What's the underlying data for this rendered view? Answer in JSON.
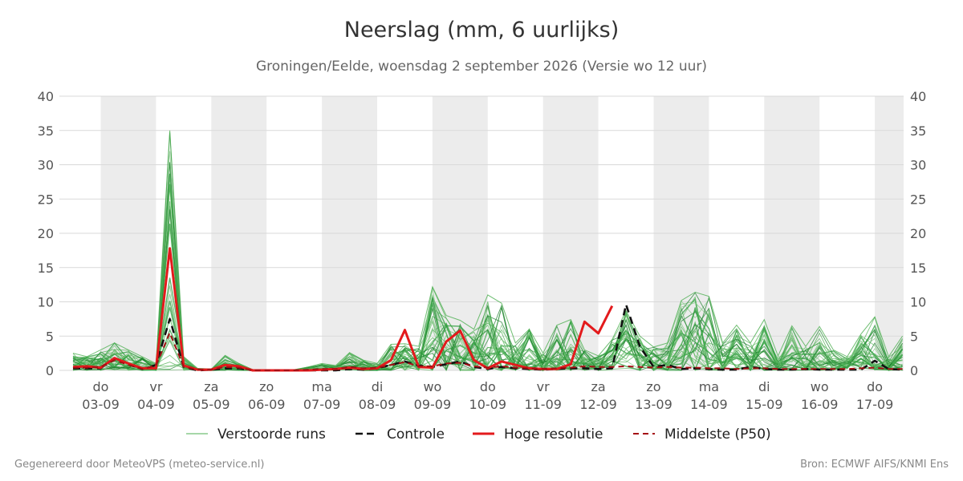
{
  "chart_data": {
    "type": "line",
    "title": "Neerslag (mm, 6 uurlijks)",
    "subtitle": "Groningen/Eelde, woensdag  2 september 2026 (Versie wo 12 uur)",
    "ylim": [
      0,
      40
    ],
    "yticks": [
      0,
      5,
      10,
      15,
      20,
      25,
      30,
      35,
      40
    ],
    "x_start_day": "02-09-2026 12:00",
    "x_step_hours": 6,
    "xtick_labels": [
      {
        "day": "do",
        "date": "03-09"
      },
      {
        "day": "vr",
        "date": "04-09"
      },
      {
        "day": "za",
        "date": "05-09"
      },
      {
        "day": "zo",
        "date": "06-09"
      },
      {
        "day": "ma",
        "date": "07-09"
      },
      {
        "day": "di",
        "date": "08-09"
      },
      {
        "day": "wo",
        "date": "09-09"
      },
      {
        "day": "do",
        "date": "10-09"
      },
      {
        "day": "vr",
        "date": "11-09"
      },
      {
        "day": "za",
        "date": "12-09"
      },
      {
        "day": "zo",
        "date": "13-09"
      },
      {
        "day": "ma",
        "date": "14-09"
      },
      {
        "day": "di",
        "date": "15-09"
      },
      {
        "day": "wo",
        "date": "16-09"
      },
      {
        "day": "do",
        "date": "17-09"
      }
    ],
    "grid": true,
    "legend_position": "bottom",
    "series": [
      {
        "name": "Verstoorde runs",
        "style": "thin",
        "color": "#2ca02c",
        "values": [
          2.5,
          2.0,
          3.0,
          4.0,
          3.0,
          2.0,
          1.0,
          35.0,
          2.0,
          0.3,
          0.2,
          2.2,
          1.0,
          0.1,
          0.0,
          0.0,
          0.1,
          0.5,
          1.0,
          0.7,
          2.6,
          1.5,
          1.0,
          3.8,
          3.9,
          3.5,
          12.2,
          8.0,
          7.3,
          6.0,
          11.0,
          9.8,
          4.0,
          6.0,
          2.5,
          6.6,
          7.4,
          3.0,
          2.1,
          4.5,
          8.7,
          5.0,
          3.4,
          4.0,
          10.2,
          11.4,
          10.8,
          4.0,
          6.6,
          4.0,
          7.4,
          2.1,
          6.5,
          3.5,
          6.4,
          3.0,
          2.0,
          5.3,
          7.8,
          2.0,
          5.0
        ]
      },
      {
        "name": "Controle",
        "style": "dashed",
        "color": "#111111",
        "values": [
          0.3,
          0.3,
          0.3,
          1.8,
          0.9,
          0.2,
          0.8,
          7.5,
          0.5,
          0.0,
          0.1,
          0.3,
          0.3,
          0.0,
          0.0,
          0.0,
          0.0,
          0.0,
          0.0,
          0.0,
          0.2,
          0.1,
          0.3,
          0.8,
          1.3,
          0.7,
          0.5,
          0.9,
          1.3,
          0.5,
          0.2,
          0.5,
          0.3,
          0.2,
          0.1,
          0.2,
          0.3,
          0.3,
          0.2,
          0.3,
          9.6,
          3.5,
          0.5,
          0.8,
          0.2,
          0.3,
          0.2,
          0.1,
          0.1,
          0.5,
          0.2,
          0.1,
          0.1,
          0.2,
          0.1,
          0.1,
          0.1,
          0.1,
          1.4,
          0.2,
          0.1
        ]
      },
      {
        "name": "Hoge resolutie",
        "style": "thick",
        "color": "#e31a1c",
        "values": [
          0.5,
          0.6,
          0.4,
          1.8,
          1.0,
          0.3,
          0.3,
          17.8,
          0.7,
          0.1,
          0.1,
          0.8,
          0.6,
          0.0,
          0.0,
          0.0,
          0.0,
          0.0,
          0.1,
          0.2,
          0.4,
          0.2,
          0.3,
          1.5,
          5.9,
          0.5,
          0.4,
          4.2,
          5.8,
          1.5,
          0.3,
          1.3,
          0.8,
          0.3,
          0.2,
          0.2,
          0.9,
          7.1,
          5.4,
          9.4
        ]
      },
      {
        "name": "Middelste (P50)",
        "style": "dashed-thin",
        "color": "#a50f15",
        "values": [
          0.4,
          0.4,
          0.5,
          1.5,
          0.8,
          0.2,
          0.7,
          5.5,
          0.5,
          0.1,
          0.1,
          0.5,
          0.4,
          0.0,
          0.0,
          0.0,
          0.0,
          0.1,
          0.2,
          0.2,
          0.5,
          0.3,
          0.4,
          0.8,
          1.2,
          0.6,
          0.6,
          1.0,
          1.1,
          0.6,
          0.4,
          0.6,
          0.4,
          0.3,
          0.2,
          0.3,
          0.4,
          0.6,
          0.5,
          0.5,
          0.6,
          0.5,
          0.4,
          0.5,
          0.4,
          0.4,
          0.3,
          0.3,
          0.2,
          0.3,
          0.3,
          0.2,
          0.2,
          0.2,
          0.2,
          0.2,
          0.2,
          0.3,
          0.4,
          0.2,
          0.2
        ]
      }
    ],
    "legend": [
      {
        "label": "Verstoorde runs",
        "color": "#4caf50",
        "style": "thin"
      },
      {
        "label": "Controle",
        "color": "#111111",
        "style": "dashed"
      },
      {
        "label": "Hoge resolutie",
        "color": "#e31a1c",
        "style": "thick"
      },
      {
        "label": "Middelste (P50)",
        "color": "#a50f15",
        "style": "dashed-thin"
      }
    ]
  },
  "footer": {
    "left": "Gegenereerd door MeteoVPS (meteo-service.nl)",
    "right": "Bron: ECMWF AIFS/KNMI Ens"
  }
}
